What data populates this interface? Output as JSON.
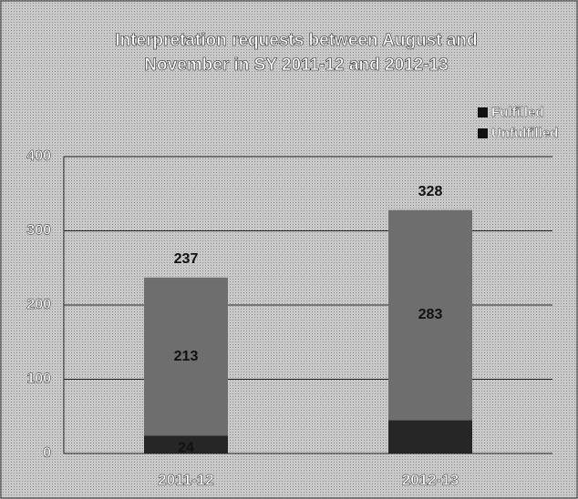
{
  "chart_data": {
    "type": "stacked_bar",
    "title": [
      "Interpretation requests between August and",
      "November in SY 2011-12 and 2012-13"
    ],
    "categories": [
      "2011-12",
      "2012-13"
    ],
    "series": [
      {
        "name": "Unfulfilled",
        "color": "#262626",
        "values": [
          24,
          45
        ],
        "value_labels": [
          "24",
          null
        ]
      },
      {
        "name": "Fulfilled",
        "color": "#6e6e6e",
        "values": [
          213,
          283
        ]
      }
    ],
    "totals": [
      237,
      328
    ],
    "ylim": [
      0,
      400
    ],
    "yticks": [
      0,
      100,
      200,
      300,
      400
    ],
    "grid": true,
    "legend": "top-right"
  }
}
